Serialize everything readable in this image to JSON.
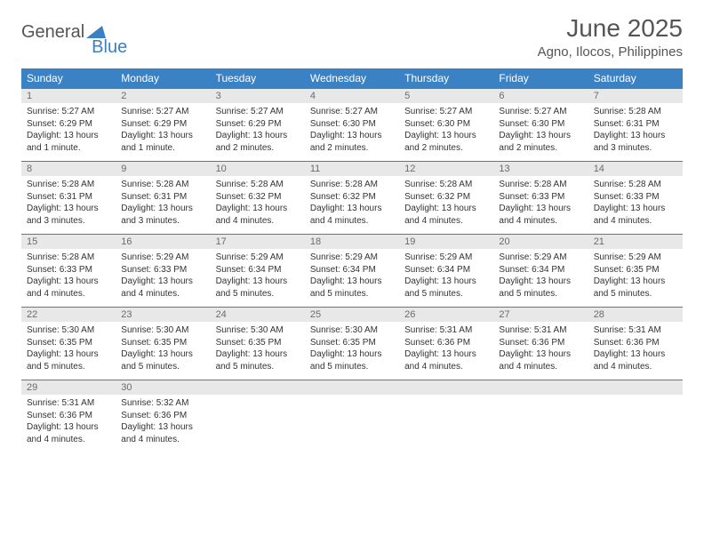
{
  "logo": {
    "text1": "General",
    "text2": "Blue"
  },
  "title": "June 2025",
  "location": "Agno, Ilocos, Philippines",
  "colors": {
    "header_bg": "#3b82c4",
    "header_fg": "#ffffff",
    "daynum_bg": "#e8e8e8",
    "daynum_fg": "#6b6b6b",
    "row_border": "#3b7fc4",
    "body_text": "#333333",
    "title_fg": "#555555"
  },
  "day_headers": [
    "Sunday",
    "Monday",
    "Tuesday",
    "Wednesday",
    "Thursday",
    "Friday",
    "Saturday"
  ],
  "weeks": [
    [
      {
        "n": "1",
        "sr": "Sunrise: 5:27 AM",
        "ss": "Sunset: 6:29 PM",
        "d1": "Daylight: 13 hours",
        "d2": "and 1 minute."
      },
      {
        "n": "2",
        "sr": "Sunrise: 5:27 AM",
        "ss": "Sunset: 6:29 PM",
        "d1": "Daylight: 13 hours",
        "d2": "and 1 minute."
      },
      {
        "n": "3",
        "sr": "Sunrise: 5:27 AM",
        "ss": "Sunset: 6:29 PM",
        "d1": "Daylight: 13 hours",
        "d2": "and 2 minutes."
      },
      {
        "n": "4",
        "sr": "Sunrise: 5:27 AM",
        "ss": "Sunset: 6:30 PM",
        "d1": "Daylight: 13 hours",
        "d2": "and 2 minutes."
      },
      {
        "n": "5",
        "sr": "Sunrise: 5:27 AM",
        "ss": "Sunset: 6:30 PM",
        "d1": "Daylight: 13 hours",
        "d2": "and 2 minutes."
      },
      {
        "n": "6",
        "sr": "Sunrise: 5:27 AM",
        "ss": "Sunset: 6:30 PM",
        "d1": "Daylight: 13 hours",
        "d2": "and 2 minutes."
      },
      {
        "n": "7",
        "sr": "Sunrise: 5:28 AM",
        "ss": "Sunset: 6:31 PM",
        "d1": "Daylight: 13 hours",
        "d2": "and 3 minutes."
      }
    ],
    [
      {
        "n": "8",
        "sr": "Sunrise: 5:28 AM",
        "ss": "Sunset: 6:31 PM",
        "d1": "Daylight: 13 hours",
        "d2": "and 3 minutes."
      },
      {
        "n": "9",
        "sr": "Sunrise: 5:28 AM",
        "ss": "Sunset: 6:31 PM",
        "d1": "Daylight: 13 hours",
        "d2": "and 3 minutes."
      },
      {
        "n": "10",
        "sr": "Sunrise: 5:28 AM",
        "ss": "Sunset: 6:32 PM",
        "d1": "Daylight: 13 hours",
        "d2": "and 4 minutes."
      },
      {
        "n": "11",
        "sr": "Sunrise: 5:28 AM",
        "ss": "Sunset: 6:32 PM",
        "d1": "Daylight: 13 hours",
        "d2": "and 4 minutes."
      },
      {
        "n": "12",
        "sr": "Sunrise: 5:28 AM",
        "ss": "Sunset: 6:32 PM",
        "d1": "Daylight: 13 hours",
        "d2": "and 4 minutes."
      },
      {
        "n": "13",
        "sr": "Sunrise: 5:28 AM",
        "ss": "Sunset: 6:33 PM",
        "d1": "Daylight: 13 hours",
        "d2": "and 4 minutes."
      },
      {
        "n": "14",
        "sr": "Sunrise: 5:28 AM",
        "ss": "Sunset: 6:33 PM",
        "d1": "Daylight: 13 hours",
        "d2": "and 4 minutes."
      }
    ],
    [
      {
        "n": "15",
        "sr": "Sunrise: 5:28 AM",
        "ss": "Sunset: 6:33 PM",
        "d1": "Daylight: 13 hours",
        "d2": "and 4 minutes."
      },
      {
        "n": "16",
        "sr": "Sunrise: 5:29 AM",
        "ss": "Sunset: 6:33 PM",
        "d1": "Daylight: 13 hours",
        "d2": "and 4 minutes."
      },
      {
        "n": "17",
        "sr": "Sunrise: 5:29 AM",
        "ss": "Sunset: 6:34 PM",
        "d1": "Daylight: 13 hours",
        "d2": "and 5 minutes."
      },
      {
        "n": "18",
        "sr": "Sunrise: 5:29 AM",
        "ss": "Sunset: 6:34 PM",
        "d1": "Daylight: 13 hours",
        "d2": "and 5 minutes."
      },
      {
        "n": "19",
        "sr": "Sunrise: 5:29 AM",
        "ss": "Sunset: 6:34 PM",
        "d1": "Daylight: 13 hours",
        "d2": "and 5 minutes."
      },
      {
        "n": "20",
        "sr": "Sunrise: 5:29 AM",
        "ss": "Sunset: 6:34 PM",
        "d1": "Daylight: 13 hours",
        "d2": "and 5 minutes."
      },
      {
        "n": "21",
        "sr": "Sunrise: 5:29 AM",
        "ss": "Sunset: 6:35 PM",
        "d1": "Daylight: 13 hours",
        "d2": "and 5 minutes."
      }
    ],
    [
      {
        "n": "22",
        "sr": "Sunrise: 5:30 AM",
        "ss": "Sunset: 6:35 PM",
        "d1": "Daylight: 13 hours",
        "d2": "and 5 minutes."
      },
      {
        "n": "23",
        "sr": "Sunrise: 5:30 AM",
        "ss": "Sunset: 6:35 PM",
        "d1": "Daylight: 13 hours",
        "d2": "and 5 minutes."
      },
      {
        "n": "24",
        "sr": "Sunrise: 5:30 AM",
        "ss": "Sunset: 6:35 PM",
        "d1": "Daylight: 13 hours",
        "d2": "and 5 minutes."
      },
      {
        "n": "25",
        "sr": "Sunrise: 5:30 AM",
        "ss": "Sunset: 6:35 PM",
        "d1": "Daylight: 13 hours",
        "d2": "and 5 minutes."
      },
      {
        "n": "26",
        "sr": "Sunrise: 5:31 AM",
        "ss": "Sunset: 6:36 PM",
        "d1": "Daylight: 13 hours",
        "d2": "and 4 minutes."
      },
      {
        "n": "27",
        "sr": "Sunrise: 5:31 AM",
        "ss": "Sunset: 6:36 PM",
        "d1": "Daylight: 13 hours",
        "d2": "and 4 minutes."
      },
      {
        "n": "28",
        "sr": "Sunrise: 5:31 AM",
        "ss": "Sunset: 6:36 PM",
        "d1": "Daylight: 13 hours",
        "d2": "and 4 minutes."
      }
    ],
    [
      {
        "n": "29",
        "sr": "Sunrise: 5:31 AM",
        "ss": "Sunset: 6:36 PM",
        "d1": "Daylight: 13 hours",
        "d2": "and 4 minutes."
      },
      {
        "n": "30",
        "sr": "Sunrise: 5:32 AM",
        "ss": "Sunset: 6:36 PM",
        "d1": "Daylight: 13 hours",
        "d2": "and 4 minutes."
      },
      {
        "empty": true
      },
      {
        "empty": true
      },
      {
        "empty": true
      },
      {
        "empty": true
      },
      {
        "empty": true
      }
    ]
  ]
}
